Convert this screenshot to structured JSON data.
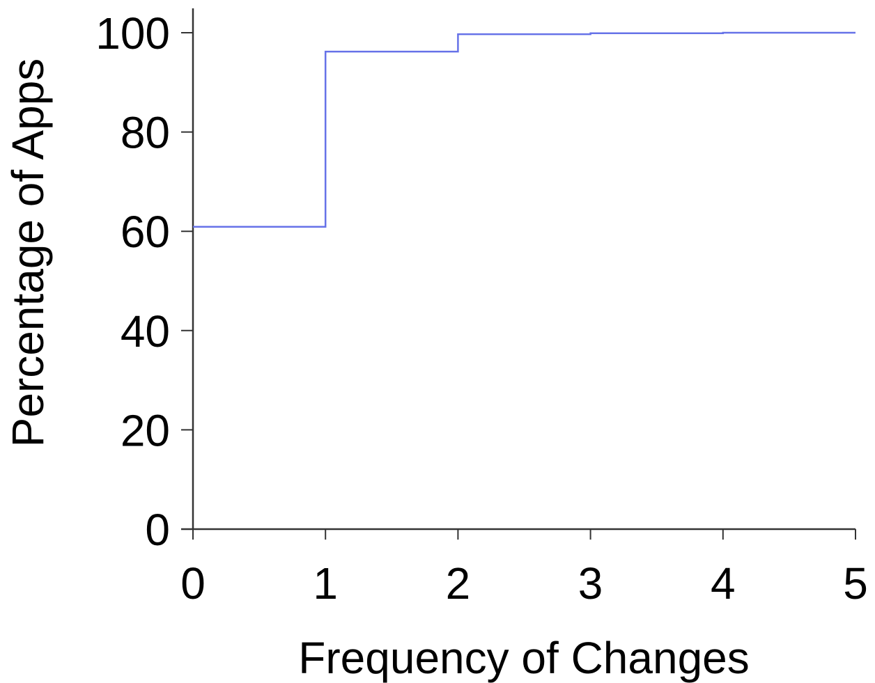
{
  "chart_data": {
    "type": "line",
    "step": true,
    "title": "",
    "xlabel": "Frequency of Changes",
    "ylabel": "Percentage of Apps",
    "xlim": [
      0,
      5
    ],
    "ylim": [
      0,
      100
    ],
    "x_ticks": [
      "0",
      "1",
      "2",
      "3",
      "4",
      "5"
    ],
    "y_ticks": [
      "0",
      "20",
      "40",
      "60",
      "80",
      "100"
    ],
    "grid": false,
    "legend": "none",
    "series": [
      {
        "color": "#6672e8",
        "x": [
          0,
          1,
          2,
          3,
          4,
          5
        ],
        "y": [
          60.9,
          96.2,
          99.7,
          99.9,
          100,
          100
        ]
      }
    ]
  }
}
